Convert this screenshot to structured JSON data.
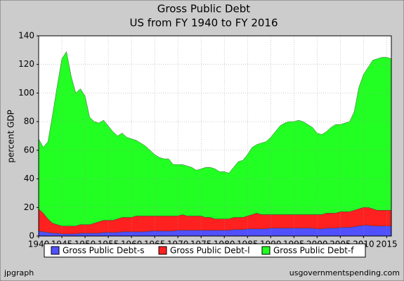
{
  "chart_data": {
    "type": "stacked_area",
    "title": "Gross Public Debt",
    "subtitle": "US from FY 1940 to FY 2016",
    "y_label": "percent GDP",
    "footer_left": "jpgraph",
    "footer_right": "usgovernmentspending.com",
    "x": [
      1940,
      1941,
      1942,
      1943,
      1944,
      1945,
      1946,
      1947,
      1948,
      1949,
      1950,
      1951,
      1952,
      1953,
      1954,
      1955,
      1956,
      1957,
      1958,
      1959,
      1960,
      1961,
      1962,
      1963,
      1964,
      1965,
      1966,
      1967,
      1968,
      1969,
      1970,
      1971,
      1972,
      1973,
      1974,
      1975,
      1976,
      1977,
      1978,
      1979,
      1980,
      1981,
      1982,
      1983,
      1984,
      1985,
      1986,
      1987,
      1988,
      1989,
      1990,
      1991,
      1992,
      1993,
      1994,
      1995,
      1996,
      1997,
      1998,
      1999,
      2000,
      2001,
      2002,
      2003,
      2004,
      2005,
      2006,
      2007,
      2008,
      2009,
      2010,
      2011,
      2012,
      2013,
      2014,
      2015,
      2016
    ],
    "xlim": [
      1940,
      2016
    ],
    "xticks": [
      1940,
      1945,
      1950,
      1955,
      1960,
      1965,
      1970,
      1975,
      1980,
      1985,
      1990,
      1995,
      2000,
      2005,
      2010,
      2015
    ],
    "ylim": [
      0,
      140
    ],
    "yticks": [
      0,
      20,
      40,
      60,
      80,
      100,
      120,
      140
    ],
    "grid": true,
    "legend": "bottom",
    "series": [
      {
        "name": "Gross Public Debt-s",
        "color": "#5050ff",
        "values": [
          3.5,
          3,
          2.5,
          2,
          2,
          1.5,
          1.5,
          1.5,
          1.5,
          2,
          2,
          2,
          2,
          2,
          2.5,
          2.5,
          2.5,
          2.5,
          3,
          3,
          3,
          3,
          3,
          3,
          3.5,
          3.5,
          3.5,
          3.5,
          3.5,
          3.5,
          4,
          4,
          4,
          4,
          4,
          4,
          4,
          4,
          4,
          4,
          4,
          4,
          4.5,
          4.5,
          4.5,
          5,
          5,
          5,
          5,
          5,
          5.5,
          5.5,
          5.5,
          5.5,
          5.5,
          5.5,
          5.5,
          5.5,
          5.5,
          5.5,
          5,
          5,
          5.5,
          5.5,
          5.5,
          6,
          6,
          6,
          6.5,
          7,
          7.5,
          7.5,
          7,
          7,
          7,
          7,
          7
        ]
      },
      {
        "name": "Gross Public Debt-l",
        "color": "#ff2020",
        "values": [
          15.5,
          13,
          9.5,
          7,
          6,
          5.5,
          5.5,
          5.5,
          5.5,
          6,
          6,
          6,
          7,
          8,
          8.5,
          8.5,
          8.5,
          9.5,
          10,
          10,
          10,
          11,
          11,
          11,
          10.5,
          10.5,
          10.5,
          10.5,
          10.5,
          10.5,
          10,
          11,
          10,
          10,
          10,
          10,
          9,
          9,
          8,
          8,
          8,
          8,
          8.5,
          8.5,
          8.5,
          9,
          10,
          11,
          10,
          10,
          9.5,
          9.5,
          9.5,
          9.5,
          9.5,
          9.5,
          9.5,
          9.5,
          9.5,
          9.5,
          10,
          10,
          10.5,
          10.5,
          10.5,
          11,
          11,
          11,
          11.5,
          12,
          12.5,
          12.5,
          12,
          11,
          11,
          11,
          11
        ]
      },
      {
        "name": "Gross Public Debt-f",
        "color": "#22ff22",
        "values": [
          49,
          46,
          54,
          76,
          97,
          117,
          122,
          105,
          93,
          95,
          90,
          75,
          71,
          69,
          70,
          66,
          62,
          58,
          59,
          56,
          55,
          53,
          51,
          49,
          46,
          43,
          41,
          40,
          40,
          36,
          36,
          35,
          35,
          34,
          32,
          33,
          35,
          35,
          35,
          33,
          33,
          32,
          35,
          39,
          40,
          43,
          47,
          48,
          50,
          51,
          54,
          58,
          62,
          64,
          65,
          65,
          66,
          65,
          63,
          61,
          57,
          56,
          57,
          60,
          62,
          61,
          62,
          63,
          69,
          85,
          93,
          98,
          104,
          106,
          107,
          107,
          106
        ]
      }
    ]
  }
}
